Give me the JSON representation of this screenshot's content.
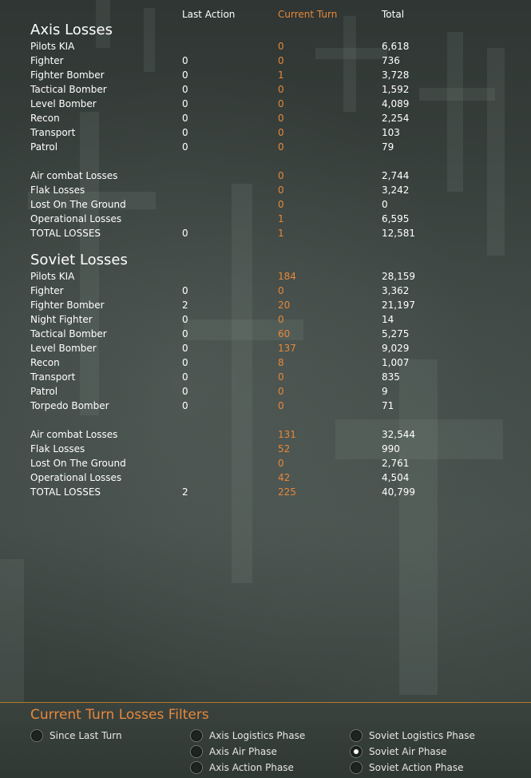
{
  "columns": {
    "last_action": "Last Action",
    "current_turn": "Current Turn",
    "total": "Total"
  },
  "axis": {
    "title": "Axis Losses",
    "rows": [
      {
        "label": "Pilots KIA",
        "last": "",
        "current": "0",
        "total": "6,618"
      },
      {
        "label": "Fighter",
        "last": "0",
        "current": "0",
        "total": "736"
      },
      {
        "label": "Fighter Bomber",
        "last": "0",
        "current": "1",
        "total": "3,728"
      },
      {
        "label": "Tactical Bomber",
        "last": "0",
        "current": "0",
        "total": "1,592"
      },
      {
        "label": "Level Bomber",
        "last": "0",
        "current": "0",
        "total": "4,089"
      },
      {
        "label": "Recon",
        "last": "0",
        "current": "0",
        "total": "2,254"
      },
      {
        "label": "Transport",
        "last": "0",
        "current": "0",
        "total": "103"
      },
      {
        "label": "Patrol",
        "last": "0",
        "current": "0",
        "total": "79"
      }
    ],
    "summary": [
      {
        "label": "Air combat Losses",
        "last": "",
        "current": "0",
        "total": "2,744"
      },
      {
        "label": "Flak Losses",
        "last": "",
        "current": "0",
        "total": "3,242"
      },
      {
        "label": "Lost On The Ground",
        "last": "",
        "current": "0",
        "total": "0"
      },
      {
        "label": "Operational Losses",
        "last": "",
        "current": "1",
        "total": "6,595"
      },
      {
        "label": "TOTAL LOSSES",
        "last": "0",
        "current": "1",
        "total": "12,581"
      }
    ]
  },
  "soviet": {
    "title": "Soviet Losses",
    "rows": [
      {
        "label": "Pilots KIA",
        "last": "",
        "current": "184",
        "total": "28,159"
      },
      {
        "label": "Fighter",
        "last": "0",
        "current": "0",
        "total": "3,362"
      },
      {
        "label": "Fighter Bomber",
        "last": "2",
        "current": "20",
        "total": "21,197"
      },
      {
        "label": "Night Fighter",
        "last": "0",
        "current": "0",
        "total": "14"
      },
      {
        "label": "Tactical Bomber",
        "last": "0",
        "current": "60",
        "total": "5,275"
      },
      {
        "label": "Level Bomber",
        "last": "0",
        "current": "137",
        "total": "9,029"
      },
      {
        "label": "Recon",
        "last": "0",
        "current": "8",
        "total": "1,007"
      },
      {
        "label": "Transport",
        "last": "0",
        "current": "0",
        "total": "835"
      },
      {
        "label": "Patrol",
        "last": "0",
        "current": "0",
        "total": "9"
      },
      {
        "label": "Torpedo Bomber",
        "last": "0",
        "current": "0",
        "total": "71"
      }
    ],
    "summary": [
      {
        "label": "Air combat Losses",
        "last": "",
        "current": "131",
        "total": "32,544"
      },
      {
        "label": "Flak Losses",
        "last": "",
        "current": "52",
        "total": "990"
      },
      {
        "label": "Lost On The Ground",
        "last": "",
        "current": "0",
        "total": "2,761"
      },
      {
        "label": "Operational Losses",
        "last": "",
        "current": "42",
        "total": "4,504"
      },
      {
        "label": "TOTAL LOSSES",
        "last": "2",
        "current": "225",
        "total": "40,799"
      }
    ]
  },
  "filters": {
    "title": "Current Turn Losses Filters",
    "options": [
      {
        "label": "Since Last Turn",
        "checked": false
      },
      {
        "label": "Axis Logistics Phase",
        "checked": false
      },
      {
        "label": "Soviet Logistics Phase",
        "checked": false
      },
      {
        "label": "Axis Air Phase",
        "checked": false
      },
      {
        "label": "Soviet Air Phase",
        "checked": true
      },
      {
        "label": "Axis Action Phase",
        "checked": false
      },
      {
        "label": "Soviet Action Phase",
        "checked": false
      }
    ]
  },
  "colors": {
    "accent_orange": "#e8883a",
    "text_white": "#ffffff",
    "background": "#3b4440"
  }
}
